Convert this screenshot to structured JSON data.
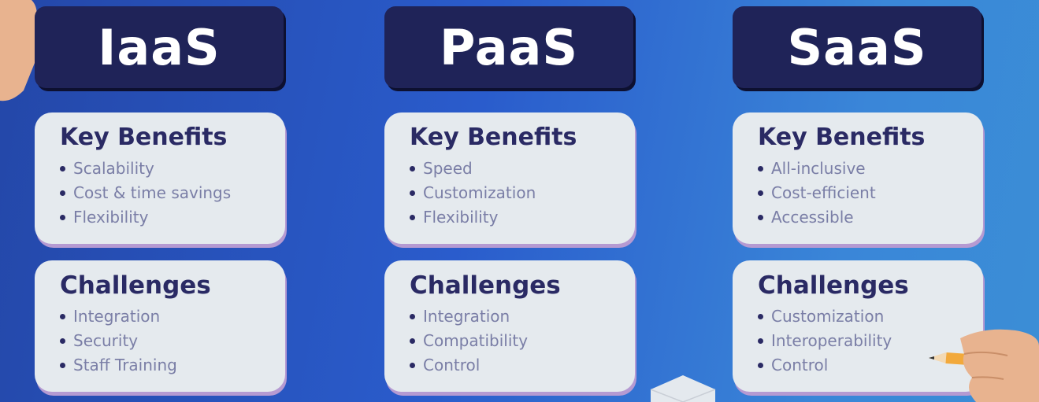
{
  "columns": [
    {
      "title": "IaaS",
      "benefits_heading": "Key Benefits",
      "benefits": [
        "Scalability",
        "Cost & time savings",
        "Flexibility"
      ],
      "challenges_heading": "Challenges",
      "challenges": [
        "Integration",
        "Security",
        "Staff Training"
      ]
    },
    {
      "title": "PaaS",
      "benefits_heading": "Key Benefits",
      "benefits": [
        "Speed",
        "Customization",
        "Flexibility"
      ],
      "challenges_heading": "Challenges",
      "challenges": [
        "Integration",
        "Compatibility",
        "Control"
      ]
    },
    {
      "title": "SaaS",
      "benefits_heading": "Key Benefits",
      "benefits": [
        "All-inclusive",
        "Cost-efficient",
        "Accessible"
      ],
      "challenges_heading": "Challenges",
      "challenges": [
        "Customization",
        "Interoperability",
        "Control"
      ]
    }
  ],
  "colors": {
    "title_card": "#1f2358",
    "card_bg": "#e5eaee",
    "card_shadow": "#b59ad2",
    "heading": "#2a2a64",
    "item_text": "#7a7ea6"
  },
  "icons": [
    "hand-icon",
    "hand-with-pencil-icon",
    "cube-icon"
  ]
}
